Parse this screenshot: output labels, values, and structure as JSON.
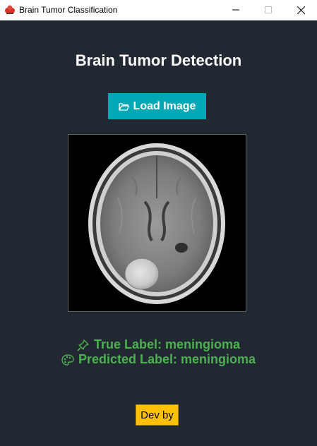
{
  "window": {
    "title": "Brain Tumor Classification",
    "minimize_icon": "minimize-icon",
    "maximize_icon": "maximize-icon",
    "close_icon": "close-icon"
  },
  "main": {
    "heading": "Brain Tumor Detection",
    "load_button": {
      "icon": "folder-open-icon",
      "label": "Load Image"
    },
    "image": {
      "subject": "axial brain MRI scan",
      "description_icon": "mri-scan-image"
    },
    "true_label": {
      "icon": "pushpin-icon",
      "text": "True Label: meningioma"
    },
    "predicted_label": {
      "icon": "palette-icon",
      "text": "Predicted Label: meningioma"
    },
    "dev_button": {
      "label": "Dev by"
    }
  },
  "colors": {
    "background": "#222832",
    "accent_teal": "#00a8b5",
    "label_green": "#4cb050",
    "dev_yellow": "#ffc107"
  }
}
